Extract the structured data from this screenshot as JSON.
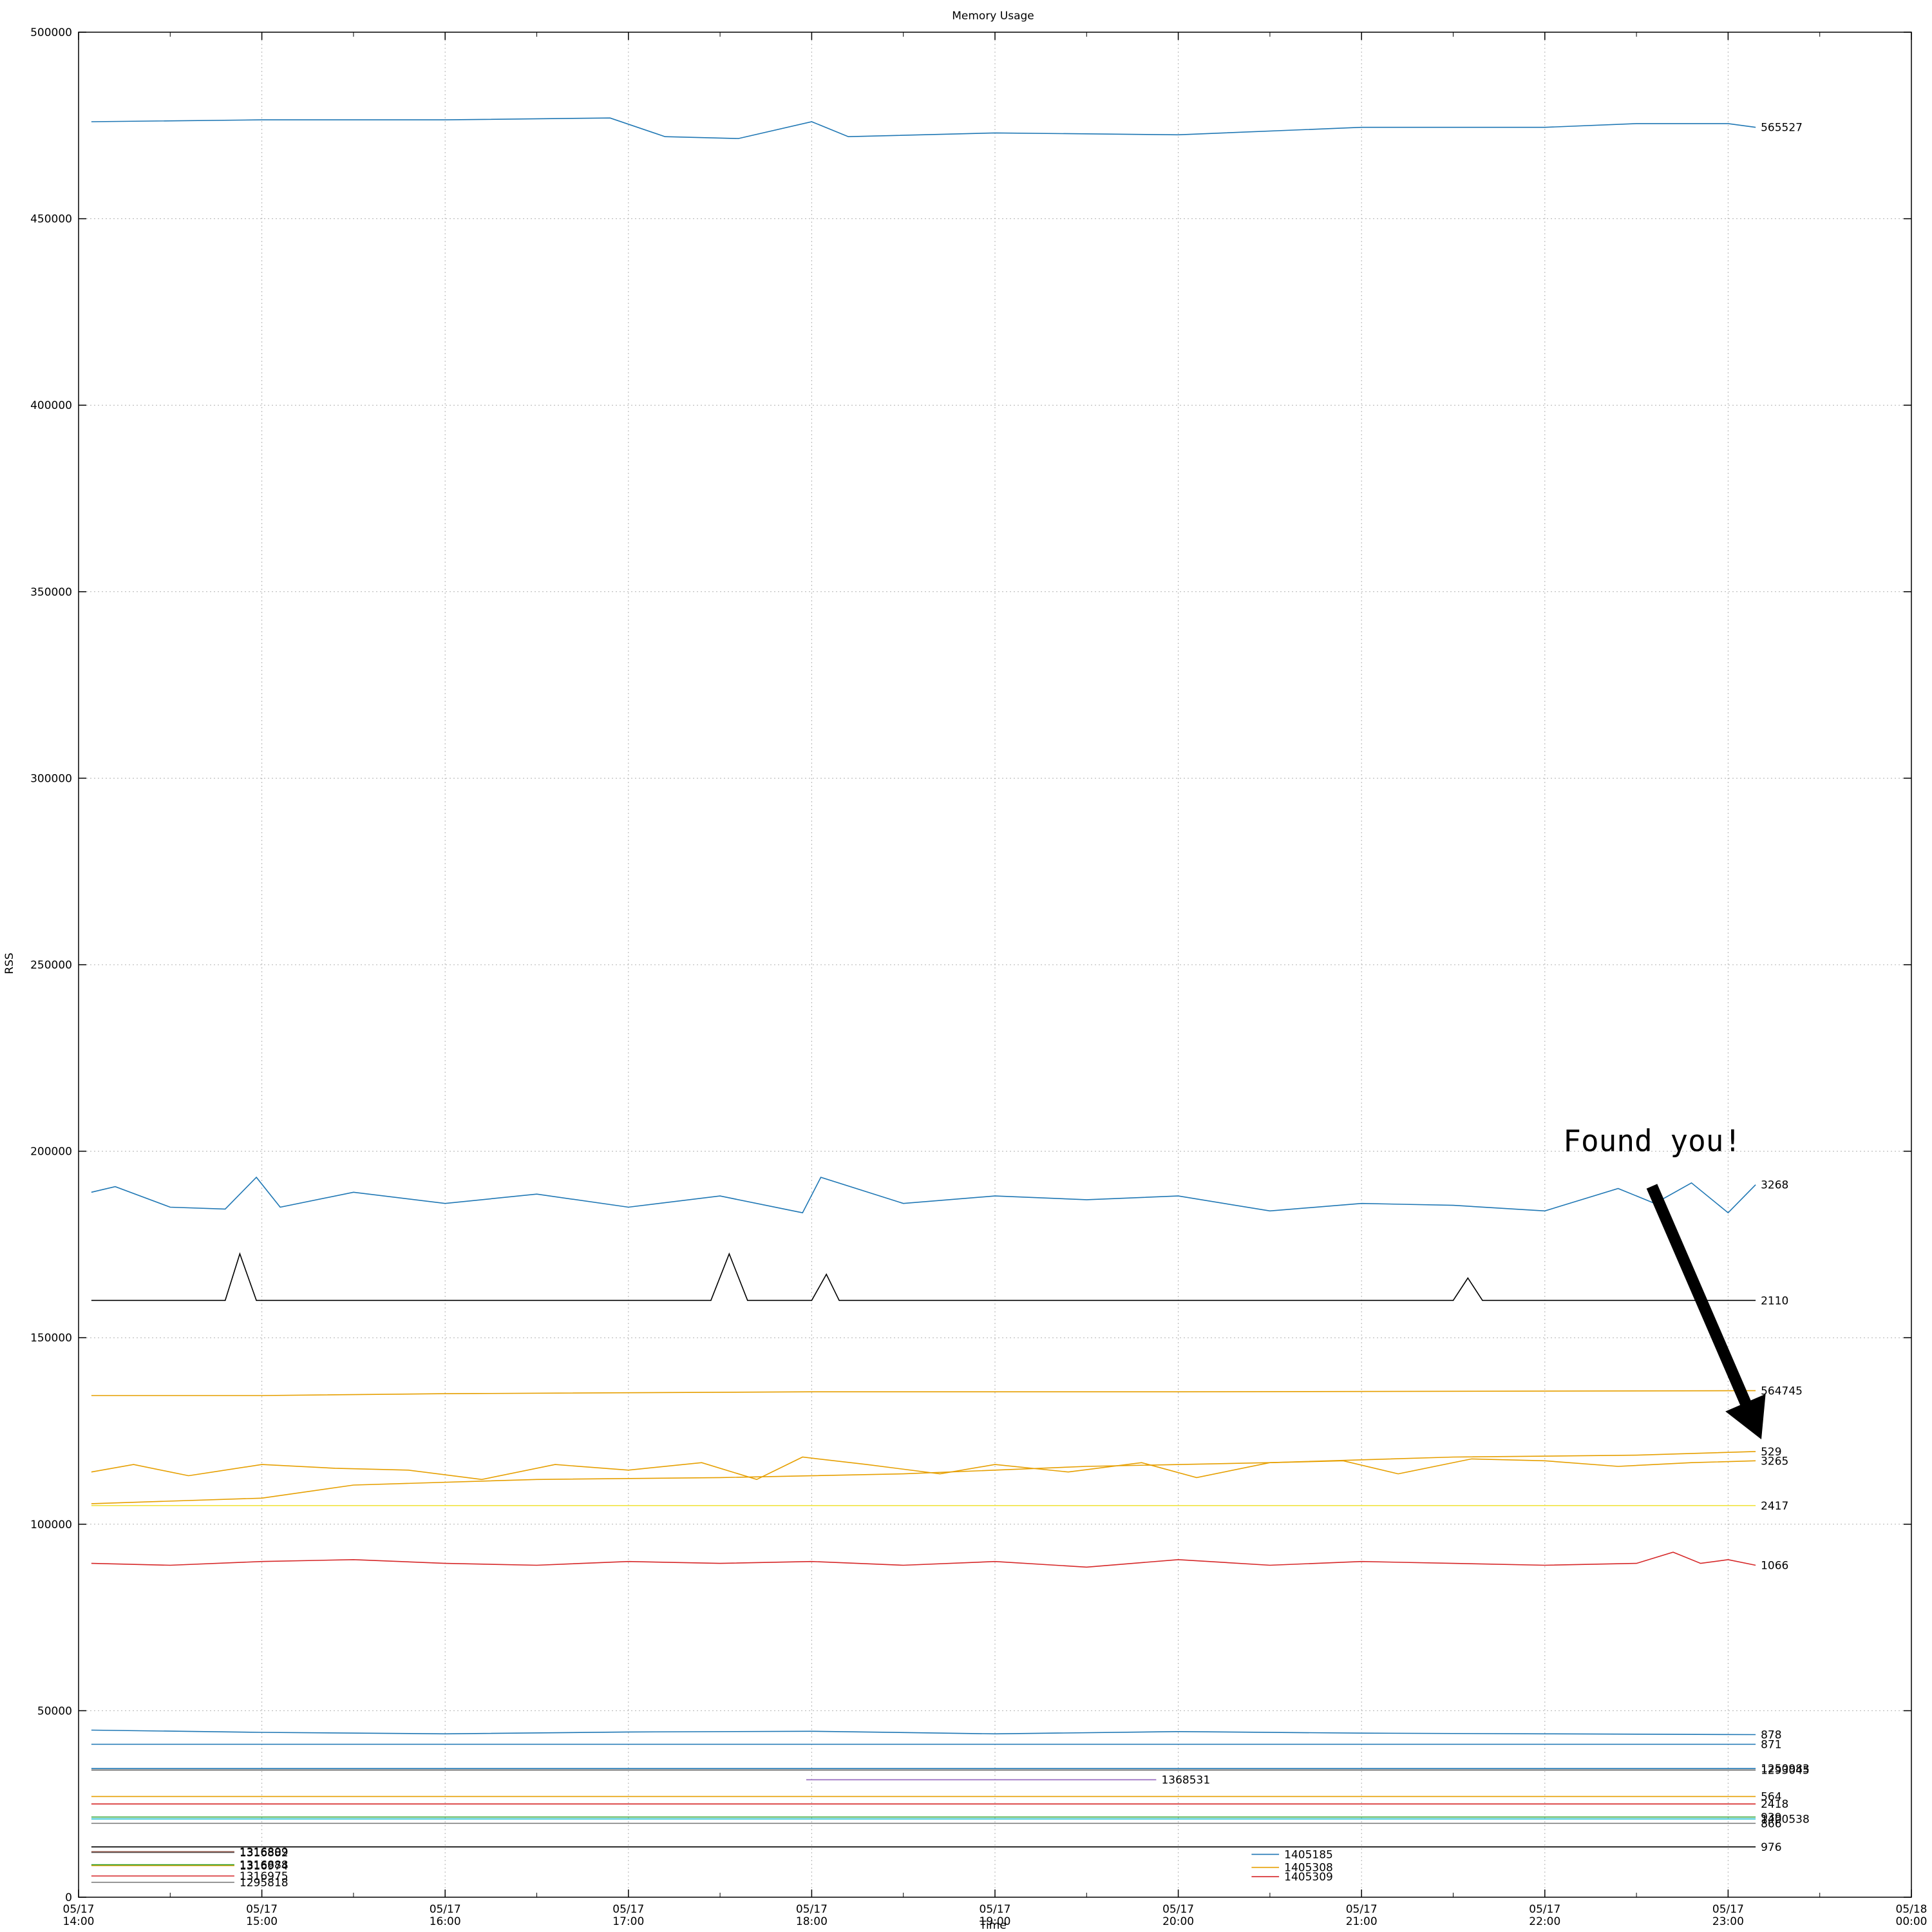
{
  "chart_data": {
    "type": "line",
    "title": "Memory Usage",
    "xlabel": "Time",
    "ylabel": "RSS",
    "ylim": [
      0,
      500000
    ],
    "xlim_hours": [
      14,
      24
    ],
    "grid": true,
    "y_ticks": [
      0,
      50000,
      100000,
      150000,
      200000,
      250000,
      300000,
      350000,
      400000,
      450000,
      500000
    ],
    "y_tick_labels": [
      "0",
      "50000",
      "100000",
      "150000",
      "200000",
      "250000",
      "300000",
      "350000",
      "400000",
      "450000",
      "500000"
    ],
    "x_ticks": [
      14,
      15,
      16,
      17,
      18,
      19,
      20,
      21,
      22,
      23,
      24
    ],
    "x_tick_labels": [
      [
        "05/17",
        "14:00"
      ],
      [
        "05/17",
        "15:00"
      ],
      [
        "05/17",
        "16:00"
      ],
      [
        "05/17",
        "17:00"
      ],
      [
        "05/17",
        "18:00"
      ],
      [
        "05/17",
        "19:00"
      ],
      [
        "05/17",
        "20:00"
      ],
      [
        "05/17",
        "21:00"
      ],
      [
        "05/17",
        "22:00"
      ],
      [
        "05/17",
        "23:00"
      ],
      [
        "05/18",
        "00:00"
      ]
    ],
    "series": [
      {
        "name": "565527",
        "color": "#1f77b4",
        "x": [
          14.07,
          15.0,
          16.0,
          16.9,
          17.2,
          17.6,
          18.0,
          18.2,
          19.0,
          20.0,
          21.0,
          22.0,
          22.5,
          23.0,
          23.15
        ],
        "y": [
          476000,
          476500,
          476500,
          477000,
          472000,
          471500,
          476000,
          472000,
          473000,
          472500,
          474500,
          474500,
          475500,
          475500,
          474500
        ]
      },
      {
        "name": "3268",
        "color": "#1f77b4",
        "x": [
          14.07,
          14.2,
          14.5,
          14.8,
          14.97,
          15.1,
          15.5,
          16.0,
          16.5,
          17.0,
          17.5,
          17.95,
          18.05,
          18.5,
          19.0,
          19.5,
          20.0,
          20.5,
          21.0,
          21.5,
          22.0,
          22.4,
          22.6,
          22.8,
          23.0,
          23.15
        ],
        "y": [
          189000,
          190500,
          185000,
          184500,
          193000,
          185000,
          189000,
          186000,
          188500,
          185000,
          188000,
          183500,
          193000,
          186000,
          188000,
          187000,
          188000,
          184000,
          186000,
          185500,
          184000,
          190000,
          186000,
          191500,
          183500,
          191000
        ]
      },
      {
        "name": "2110",
        "color": "#000000",
        "x": [
          14.07,
          14.8,
          14.88,
          14.97,
          17.45,
          17.55,
          17.65,
          18.0,
          18.08,
          18.15,
          21.5,
          21.58,
          21.66,
          23.15
        ],
        "y": [
          160000,
          160000,
          172500,
          160000,
          160000,
          172500,
          160000,
          160000,
          167000,
          160000,
          160000,
          166000,
          160000,
          160000
        ]
      },
      {
        "name": "564745",
        "color": "#e69f00",
        "x": [
          14.07,
          15.0,
          16.0,
          18.0,
          20.0,
          23.15
        ],
        "y": [
          134500,
          134500,
          135000,
          135500,
          135500,
          135800
        ]
      },
      {
        "name": "529",
        "color": "#e69f00",
        "x": [
          14.07,
          15.0,
          15.5,
          16.5,
          17.5,
          18.5,
          19.5,
          20.5,
          21.5,
          22.5,
          23.15
        ],
        "y": [
          105500,
          107000,
          110500,
          112000,
          112500,
          113500,
          115500,
          116500,
          118000,
          118500,
          119500
        ]
      },
      {
        "name": "3265",
        "color": "#e69f00",
        "x": [
          14.07,
          14.3,
          14.6,
          15.0,
          15.4,
          15.8,
          16.2,
          16.6,
          17.0,
          17.4,
          17.7,
          17.95,
          18.3,
          18.7,
          19.0,
          19.4,
          19.8,
          20.1,
          20.5,
          20.9,
          21.2,
          21.6,
          22.0,
          22.4,
          22.8,
          23.15
        ],
        "y": [
          114000,
          116000,
          113000,
          116000,
          115000,
          114500,
          112000,
          116000,
          114500,
          116500,
          112000,
          118000,
          116000,
          113500,
          116000,
          114000,
          116500,
          112500,
          116500,
          117000,
          113500,
          117500,
          117000,
          115500,
          116500,
          117000
        ]
      },
      {
        "name": "2417",
        "color": "#f0e442",
        "x": [
          14.07,
          23.15
        ],
        "y": [
          105000,
          105000
        ]
      },
      {
        "name": "1066",
        "color": "#d62728",
        "x": [
          14.07,
          14.5,
          15.0,
          15.5,
          16.0,
          16.5,
          17.0,
          17.5,
          18.0,
          18.5,
          19.0,
          19.5,
          20.0,
          20.5,
          21.0,
          21.5,
          22.0,
          22.5,
          22.7,
          22.85,
          23.0,
          23.15
        ],
        "y": [
          89500,
          89000,
          90000,
          90500,
          89500,
          89000,
          90000,
          89500,
          90000,
          89000,
          90000,
          88500,
          90500,
          89000,
          90000,
          89500,
          89000,
          89500,
          92500,
          89500,
          90500,
          89000
        ]
      },
      {
        "name": "878",
        "color": "#1f77b4",
        "x": [
          14.07,
          15.0,
          16.0,
          17.0,
          18.0,
          19.0,
          20.0,
          21.0,
          22.0,
          23.15
        ],
        "y": [
          44800,
          44200,
          43800,
          44300,
          44500,
          43800,
          44400,
          44000,
          43800,
          43600
        ]
      },
      {
        "name": "871",
        "color": "#1f77b4",
        "x": [
          14.07,
          23.15
        ],
        "y": [
          41000,
          41000
        ]
      },
      {
        "name": "1250983",
        "color": "#1f77b4",
        "x": [
          14.07,
          23.15
        ],
        "y": [
          34500,
          34500
        ]
      },
      {
        "name": "1293045",
        "color": "#555555",
        "x": [
          14.07,
          23.15
        ],
        "y": [
          34100,
          34100
        ]
      },
      {
        "name": "1368531",
        "color": "#9467bd",
        "x": [
          17.97,
          19.88
        ],
        "y": [
          31500,
          31500
        ]
      },
      {
        "name": "564",
        "color": "#e69f00",
        "x": [
          14.07,
          23.15
        ],
        "y": [
          27000,
          27000
        ]
      },
      {
        "name": "2418",
        "color": "#d62728",
        "x": [
          14.07,
          23.15
        ],
        "y": [
          25000,
          25000
        ]
      },
      {
        "name": "939",
        "color": "#2ca02c",
        "x": [
          14.07,
          23.15
        ],
        "y": [
          21500,
          21500
        ]
      },
      {
        "name": "1400538",
        "color": "#17becf",
        "x": [
          14.07,
          23.15
        ],
        "y": [
          21000,
          21000
        ]
      },
      {
        "name": "866",
        "color": "#7f7f7f",
        "x": [
          14.07,
          23.15
        ],
        "y": [
          19800,
          19800
        ]
      },
      {
        "name": "976",
        "color": "#000000",
        "x": [
          14.07,
          23.15
        ],
        "y": [
          13500,
          13500
        ]
      },
      {
        "name": "1316882",
        "color": "#555555",
        "x": [
          14.07,
          14.85
        ],
        "y": [
          12000,
          12000
        ]
      },
      {
        "name": "1405185",
        "color": "#1f77b4",
        "x": [
          20.4,
          20.55
        ],
        "y": [
          11500,
          11500
        ]
      },
      {
        "name": "1316974",
        "color": "#e69f00",
        "x": [
          14.07,
          14.85
        ],
        "y": [
          8500,
          8500
        ]
      },
      {
        "name": "1405308",
        "color": "#e69f00",
        "x": [
          20.4,
          20.55
        ],
        "y": [
          8000,
          8000
        ]
      },
      {
        "name": "1316975",
        "color": "#d62728",
        "x": [
          14.07,
          14.85
        ],
        "y": [
          5700,
          5700
        ]
      },
      {
        "name": "1405309",
        "color": "#d62728",
        "x": [
          20.4,
          20.55
        ],
        "y": [
          5500,
          5500
        ]
      },
      {
        "name": "1316809",
        "color": "#8c564b",
        "x": [
          14.07,
          14.85
        ],
        "y": [
          12200,
          12200
        ]
      },
      {
        "name": "1316888",
        "color": "#2ca02c",
        "x": [
          14.07,
          14.85
        ],
        "y": [
          8700,
          8700
        ]
      },
      {
        "name": "1295818",
        "color": "#7f7f7f",
        "x": [
          14.07,
          14.85
        ],
        "y": [
          4000,
          4000
        ]
      }
    ],
    "annotations": [
      {
        "text": "Found you!",
        "x_hour": 22.1,
        "y_value": 200000
      }
    ]
  }
}
